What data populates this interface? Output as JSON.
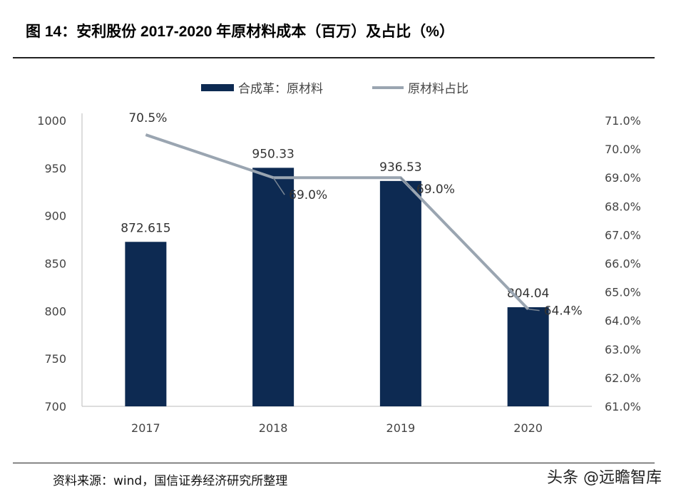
{
  "title": "图 14：安利股份 2017-2020 年原材料成本（百万）及占比（%）",
  "source": "资料来源：wind，国信证券经济研究所整理",
  "watermark": "头条 @远瞻智库",
  "chart_data": {
    "type": "bar+line",
    "categories": [
      "2017",
      "2018",
      "2019",
      "2020"
    ],
    "series": [
      {
        "name": "合成革：原材料",
        "type": "bar",
        "axis": "left",
        "values": [
          872.615,
          950.33,
          936.53,
          804.04
        ],
        "labels": [
          "872.615",
          "950.33",
          "936.53",
          "804.04"
        ],
        "color": "#0d2a52"
      },
      {
        "name": "原材料占比",
        "type": "line",
        "axis": "right",
        "values": [
          70.5,
          69.0,
          69.0,
          64.4
        ],
        "labels": [
          "70.5%",
          "69.0%",
          "69.0%",
          "64.4%"
        ],
        "color": "#9aa5b1"
      }
    ],
    "y_left": {
      "range": [
        700,
        1000
      ],
      "ticks": [
        "700",
        "750",
        "800",
        "850",
        "900",
        "950",
        "1000"
      ]
    },
    "y_right": {
      "range": [
        61,
        71
      ],
      "ticks": [
        "61.0%",
        "62.0%",
        "63.0%",
        "64.0%",
        "65.0%",
        "66.0%",
        "67.0%",
        "68.0%",
        "69.0%",
        "70.0%",
        "71.0%"
      ]
    },
    "grid": false,
    "legend": "top"
  }
}
